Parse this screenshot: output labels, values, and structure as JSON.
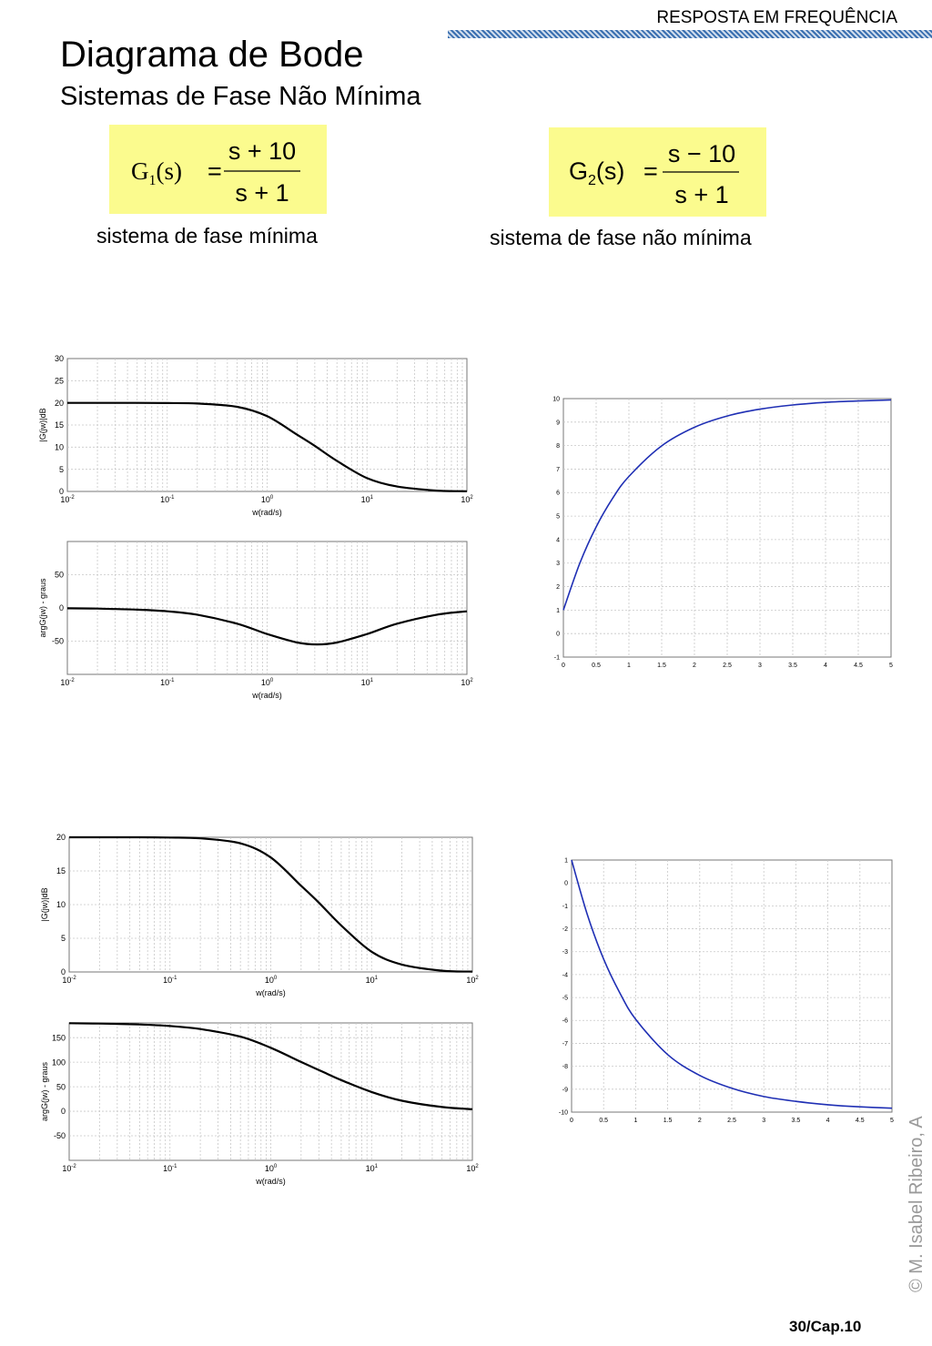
{
  "header": {
    "section": "RESPOSTA EM FREQUÊNCIA"
  },
  "title": "Diagrama de Bode",
  "subtitle": "Sistemas de Fase Não Mínima",
  "formulas": [
    {
      "lhs_main": "G",
      "lhs_sub": "1",
      "lhs_arg": "(s)",
      "eq": "=",
      "numerator": "s + 10",
      "denominator": "s + 1",
      "caption": "sistema de fase mínima"
    },
    {
      "lhs_main": "G",
      "lhs_sub": "2",
      "lhs_arg": "(s)",
      "eq": "=",
      "numerator": "s − 10",
      "denominator": "s + 1",
      "caption": "sistema de fase não mínima"
    }
  ],
  "footer": {
    "page": "30/Cap.10",
    "copyright": "© M. Isabel Ribeiro, A"
  },
  "colors": {
    "highlight": "#fbfb8e",
    "header_bar": "#3a6fb0",
    "curve": "#000000",
    "step_curve": "#1f2fb4"
  },
  "chart_data": [
    {
      "id": "g1-mag",
      "type": "line",
      "xscale": "log",
      "xlabel": "w(rad/s)",
      "ylabel": "|G(jw)|dB",
      "xlim": [
        0.01,
        100
      ],
      "ylim": [
        0,
        30
      ],
      "yticks": [
        "0",
        "5",
        "10",
        "15",
        "20",
        "25",
        "30"
      ],
      "xticks": [
        {
          "base": "10",
          "exp": "-2"
        },
        {
          "base": "10",
          "exp": "-1"
        },
        {
          "base": "10",
          "exp": "0"
        },
        {
          "base": "10",
          "exp": "1"
        },
        {
          "base": "10",
          "exp": "2"
        }
      ],
      "grid": true,
      "x": [
        0.01,
        0.02,
        0.05,
        0.1,
        0.2,
        0.5,
        1,
        2,
        3,
        5,
        10,
        20,
        50,
        100
      ],
      "y": [
        20.0,
        20.0,
        20.0,
        19.96,
        19.84,
        19.1,
        17.0,
        12.8,
        10.3,
        6.9,
        3.0,
        1.1,
        0.19,
        0.05
      ]
    },
    {
      "id": "g1-phase",
      "type": "line",
      "xscale": "log",
      "xlabel": "w(rad/s)",
      "ylabel": "argG(jw) - graus",
      "xlim": [
        0.01,
        100
      ],
      "ylim": [
        -100,
        100
      ],
      "yticks": [
        "-50",
        "0",
        "50"
      ],
      "xticks": [
        {
          "base": "10",
          "exp": "-2"
        },
        {
          "base": "10",
          "exp": "-1"
        },
        {
          "base": "10",
          "exp": "0"
        },
        {
          "base": "10",
          "exp": "1"
        },
        {
          "base": "10",
          "exp": "2"
        }
      ],
      "grid": true,
      "x": [
        0.01,
        0.02,
        0.05,
        0.1,
        0.2,
        0.5,
        1,
        2,
        3.16,
        5,
        10,
        20,
        50,
        100
      ],
      "y": [
        -0.5,
        -1.0,
        -2.6,
        -5.1,
        -10.2,
        -23.7,
        -39.3,
        -52.1,
        -55.0,
        -52.1,
        -39.3,
        -23.7,
        -10.2,
        -5.1
      ]
    },
    {
      "id": "g2-step",
      "type": "line",
      "xlim": [
        0,
        5
      ],
      "ylim": [
        -1,
        10
      ],
      "xticks": [
        "0",
        "0.5",
        "1",
        "1.5",
        "2",
        "2.5",
        "3",
        "3.5",
        "4",
        "4.5",
        "5"
      ],
      "yticks": [
        "-1",
        "0",
        "1",
        "2",
        "3",
        "4",
        "5",
        "6",
        "7",
        "8",
        "9",
        "10"
      ],
      "grid": true,
      "x": [
        0,
        0.25,
        0.5,
        0.75,
        1,
        1.5,
        2,
        2.5,
        3,
        3.5,
        4,
        4.5,
        5
      ],
      "y": [
        1.0,
        2.99,
        4.54,
        5.75,
        6.69,
        7.99,
        8.78,
        9.26,
        9.55,
        9.73,
        9.84,
        9.9,
        9.94
      ]
    },
    {
      "id": "g2-mag",
      "type": "line",
      "xscale": "log",
      "xlabel": "w(rad/s)",
      "ylabel": "|G(jw)|dB",
      "xlim": [
        0.01,
        100
      ],
      "ylim": [
        0,
        20
      ],
      "yticks": [
        "0",
        "5",
        "10",
        "15",
        "20"
      ],
      "xticks": [
        {
          "base": "10",
          "exp": "-2"
        },
        {
          "base": "10",
          "exp": "-1"
        },
        {
          "base": "10",
          "exp": "0"
        },
        {
          "base": "10",
          "exp": "1"
        },
        {
          "base": "10",
          "exp": "2"
        }
      ],
      "grid": true,
      "x": [
        0.01,
        0.02,
        0.05,
        0.1,
        0.2,
        0.5,
        1,
        2,
        3,
        5,
        10,
        20,
        50,
        100
      ],
      "y": [
        20.0,
        20.0,
        20.0,
        19.96,
        19.84,
        19.1,
        17.0,
        12.8,
        10.3,
        6.9,
        3.0,
        1.1,
        0.19,
        0.05
      ]
    },
    {
      "id": "g2-phase",
      "type": "line",
      "xscale": "log",
      "xlabel": "w(rad/s)",
      "ylabel": "argG(jw) - graus",
      "xlim": [
        0.01,
        100
      ],
      "ylim": [
        -100,
        180
      ],
      "yticks": [
        "-50",
        "0",
        "50",
        "100",
        "150"
      ],
      "xticks": [
        {
          "base": "10",
          "exp": "-2"
        },
        {
          "base": "10",
          "exp": "-1"
        },
        {
          "base": "10",
          "exp": "0"
        },
        {
          "base": "10",
          "exp": "1"
        },
        {
          "base": "10",
          "exp": "2"
        }
      ],
      "grid": true,
      "x": [
        0.01,
        0.02,
        0.05,
        0.1,
        0.2,
        0.5,
        1,
        2,
        3.16,
        5,
        10,
        20,
        50,
        100
      ],
      "y": [
        179.4,
        178.7,
        176.8,
        173.7,
        167.5,
        152.0,
        129.3,
        100.5,
        81.9,
        63.5,
        39.3,
        21.5,
        8.6,
        4.3
      ]
    },
    {
      "id": "g2-step2",
      "type": "line",
      "xlim": [
        0,
        5
      ],
      "ylim": [
        -10,
        1
      ],
      "xticks": [
        "0",
        "0.5",
        "1",
        "1.5",
        "2",
        "2.5",
        "3",
        "3.5",
        "4",
        "4.5",
        "5"
      ],
      "yticks": [
        "-10",
        "-9",
        "-8",
        "-7",
        "-6",
        "-5",
        "-4",
        "-3",
        "-2",
        "-1",
        "0",
        "1"
      ],
      "grid": true,
      "x": [
        0,
        0.25,
        0.5,
        0.75,
        1,
        1.5,
        2,
        2.5,
        3,
        3.5,
        4,
        4.5,
        5
      ],
      "y": [
        1.0,
        -1.42,
        -3.32,
        -4.78,
        -5.95,
        -7.49,
        -8.4,
        -8.96,
        -9.32,
        -9.53,
        -9.68,
        -9.77,
        -9.83
      ]
    }
  ]
}
